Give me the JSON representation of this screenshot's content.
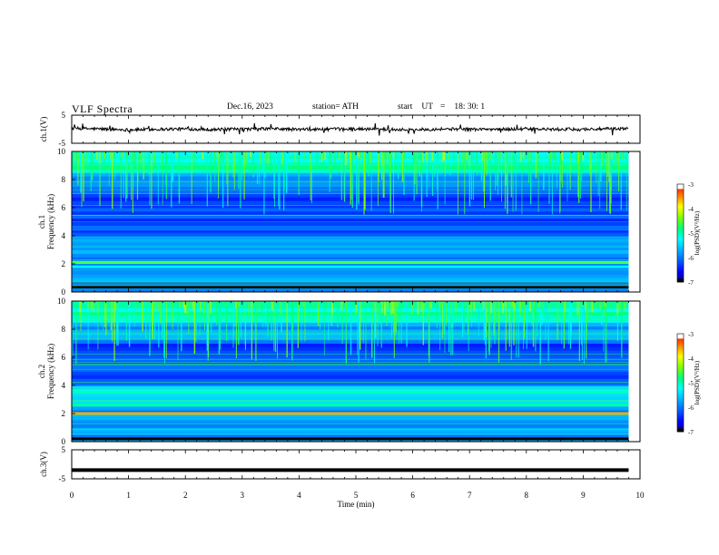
{
  "header": {
    "title": "VLF  Spectra",
    "date": "Dec.16, 2023",
    "station": "station= ATH",
    "start_label": "start",
    "ut_label": "UT",
    "equals": "=",
    "start_time": "18: 30: 1"
  },
  "colors": {
    "colormap": [
      "#000000",
      "#00008b",
      "#0000ff",
      "#0060ff",
      "#00b0ff",
      "#00ffff",
      "#00ff80",
      "#80ff00",
      "#ffff00",
      "#ff8000",
      "#ff0000",
      "#ffffff"
    ],
    "trace": "#000000",
    "background": "#ffffff"
  },
  "chart_data": [
    {
      "type": "line",
      "ylabel": "ch.1(V)",
      "ylim": [
        -5,
        5
      ],
      "yticks": [
        "5",
        "-5"
      ],
      "x_unit": "min",
      "x": [
        0,
        0.5,
        1,
        1.5,
        2,
        2.5,
        3,
        3.5,
        4,
        4.5,
        5,
        5.5,
        6,
        6.5,
        7,
        7.5,
        8,
        8.5,
        9,
        9.8
      ],
      "y": [
        0.3,
        0.1,
        -0.2,
        0.0,
        0.1,
        -0.1,
        0.0,
        0.2,
        -0.1,
        0.0,
        0.1,
        0.0,
        -0.2,
        0.1,
        0.0,
        0.0,
        0.1,
        -0.1,
        0.0,
        0.2
      ]
    },
    {
      "type": "heatmap",
      "ylabel": "ch.1\nFrequency (kHz)",
      "ylim": [
        0,
        10
      ],
      "yticks": [
        "0",
        "2",
        "4",
        "6",
        "8",
        "10"
      ],
      "colorbar": {
        "label": "log(PSD)(V²/Hz)",
        "range": [
          -7,
          -3
        ],
        "ticks": [
          "-3",
          "-4",
          "-5",
          "-6",
          "-7"
        ]
      },
      "bands_khz": [
        {
          "f": 2.1,
          "level": -4.4
        },
        {
          "f": 1.8,
          "level": -5.3
        },
        {
          "f": 0.9,
          "level": -5.6
        },
        {
          "f": 0.35,
          "level": -7
        }
      ]
    },
    {
      "type": "heatmap",
      "ylabel": "ch.2\nFrequency (kHz)",
      "ylim": [
        0,
        10
      ],
      "yticks": [
        "0",
        "2",
        "4",
        "6",
        "8",
        "10"
      ],
      "colorbar": {
        "label": "log(PSD)(V²/Hz)",
        "range": [
          -7,
          -3
        ],
        "ticks": [
          "-3",
          "-4",
          "-5",
          "-6",
          "-7"
        ]
      },
      "bands_khz": [
        {
          "f": 2.0,
          "level": -3.6
        },
        {
          "f": 2.6,
          "level": -4.9
        },
        {
          "f": 3.5,
          "level": -5.0
        },
        {
          "f": 0.2,
          "level": -7
        }
      ]
    },
    {
      "type": "line",
      "ylabel": "ch.3(V)",
      "ylim": [
        -5,
        5
      ],
      "yticks": [
        "5",
        "-5"
      ],
      "x_unit": "min",
      "x": [
        0,
        9.8
      ],
      "y": [
        -2,
        -2
      ]
    }
  ],
  "x_axis": {
    "label": "Time  (min)",
    "ticks": [
      "0",
      "1",
      "2",
      "3",
      "4",
      "5",
      "6",
      "7",
      "8",
      "9",
      "10"
    ],
    "range": [
      0,
      10
    ]
  }
}
